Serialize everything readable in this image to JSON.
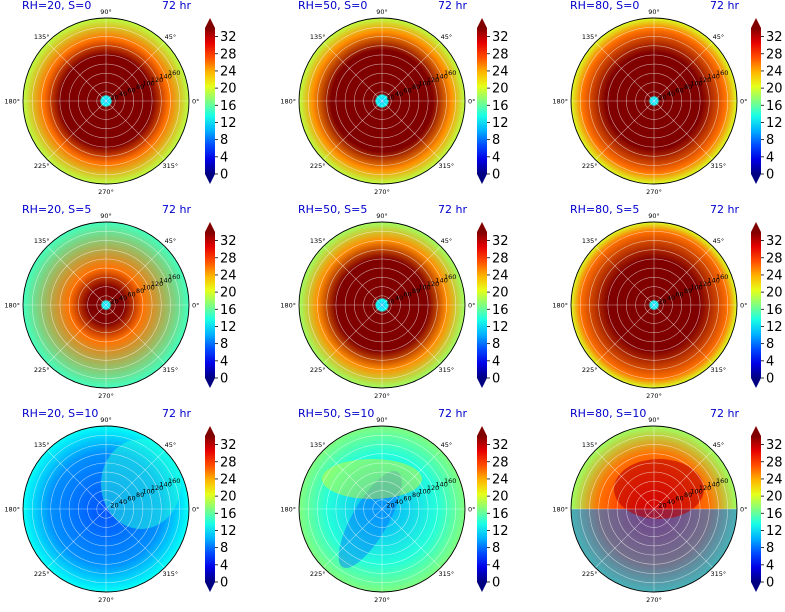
{
  "chart_data": {
    "type": "heatmap",
    "projection": "polar",
    "layout": {
      "rows": 3,
      "cols": 3
    },
    "angle_ticks": [
      "0°",
      "45°",
      "90°",
      "135°",
      "180°",
      "225°",
      "270°",
      "315°"
    ],
    "radial_ticks": [
      "20",
      "40",
      "60",
      "80",
      "100",
      "120",
      "140",
      "160"
    ],
    "rlim": [
      0,
      180
    ],
    "colorbar": {
      "colormap": "jet",
      "ticks": [
        "0",
        "4",
        "8",
        "12",
        "16",
        "20",
        "24",
        "28",
        "32"
      ],
      "vmin": 0,
      "vmax": 34,
      "extend": "both"
    },
    "grid": true,
    "panels": [
      {
        "title_left": "RH=20, S=0",
        "title_right": "72 hr",
        "eye_radius": 10,
        "core_radius": 100,
        "core_value": 34,
        "ring_radius": 135,
        "ring_value": 26,
        "outer_value": 19,
        "pattern": "symmetric"
      },
      {
        "title_left": "RH=50, S=0",
        "title_right": "72 hr",
        "eye_radius": 12,
        "core_radius": 110,
        "core_value": 34,
        "ring_radius": 150,
        "ring_value": 25,
        "outer_value": 19,
        "pattern": "symmetric"
      },
      {
        "title_left": "RH=80, S=0",
        "title_right": "72 hr",
        "eye_radius": 8,
        "core_radius": 105,
        "core_value": 34,
        "ring_radius": 155,
        "ring_value": 26,
        "outer_value": 20,
        "pattern": "symmetric"
      },
      {
        "title_left": "RH=20, S=5",
        "title_right": "72 hr",
        "eye_radius": 8,
        "core_radius": 40,
        "core_value": 34,
        "ring_radius": 80,
        "ring_value": 26,
        "outer_value": 15,
        "pattern": "symmetric"
      },
      {
        "title_left": "RH=50, S=5",
        "title_right": "72 hr",
        "eye_radius": 12,
        "core_radius": 100,
        "core_value": 34,
        "ring_radius": 140,
        "ring_value": 25,
        "outer_value": 18,
        "pattern": "symmetric"
      },
      {
        "title_left": "RH=80, S=5",
        "title_right": "72 hr",
        "eye_radius": 8,
        "core_radius": 100,
        "core_value": 34,
        "ring_radius": 160,
        "ring_value": 26,
        "outer_value": 20,
        "pattern": "symmetric"
      },
      {
        "title_left": "RH=20, S=10",
        "title_right": "72 hr",
        "eye_radius": 0,
        "core_radius": 0,
        "core_value": 7,
        "ring_radius": 120,
        "ring_value": 9,
        "outer_value": 13,
        "pattern": "dry"
      },
      {
        "title_left": "RH=50, S=10",
        "title_right": "72 hr",
        "eye_radius": 0,
        "core_radius": 0,
        "core_value": 10,
        "ring_radius": 120,
        "ring_value": 14,
        "outer_value": 17,
        "pattern": "sheared"
      },
      {
        "title_left": "RH=80, S=10",
        "title_right": "72 hr",
        "eye_radius": 0,
        "core_radius": 0,
        "core_value": 30,
        "ring_radius": 120,
        "ring_value": 26,
        "outer_value": 18,
        "pattern": "half"
      }
    ]
  }
}
